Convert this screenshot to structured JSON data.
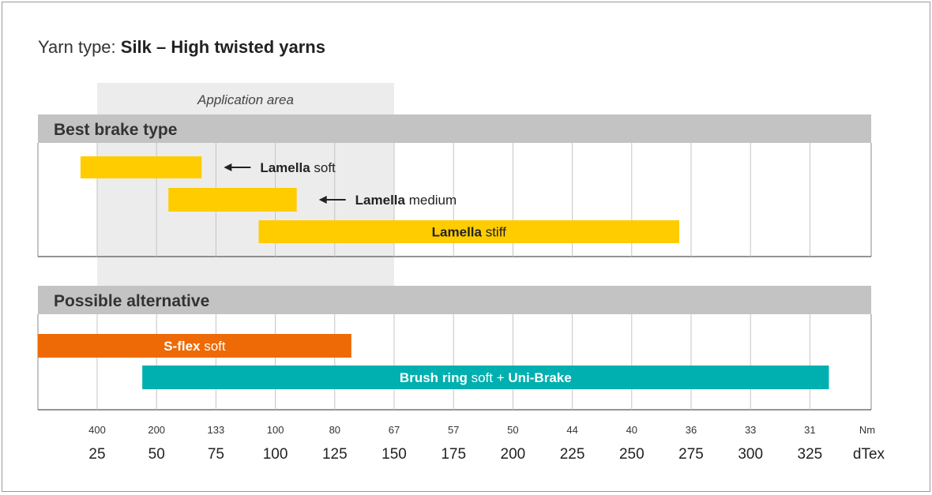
{
  "title": {
    "prefix": "Yarn type: ",
    "name": "Silk – High twisted yarns"
  },
  "application_area": {
    "label": "Application area",
    "from_dtex": 25,
    "to_dtex": 150
  },
  "chart_data": {
    "type": "range-bar",
    "title": "Yarn type: Silk – High twisted yarns",
    "dtex_ticks": [
      25,
      50,
      75,
      100,
      125,
      150,
      175,
      200,
      225,
      250,
      275,
      300,
      325
    ],
    "nm_ticks": [
      "400",
      "200",
      "133",
      "100",
      "80",
      "67",
      "57",
      "50",
      "44",
      "40",
      "36",
      "33",
      "31"
    ],
    "dtex_unit": "dTex",
    "nm_unit": "Nm",
    "sections": [
      {
        "heading": "Best brake type",
        "bars": [
          {
            "bold": "Lamella",
            "rest": " soft",
            "from": 18,
            "to": 69,
            "color": "#FFCC00",
            "label_pos": "outside",
            "arrow": true
          },
          {
            "bold": "Lamella",
            "rest": " medium",
            "from": 55,
            "to": 109,
            "color": "#FFCC00",
            "label_pos": "outside",
            "arrow": true
          },
          {
            "bold": "Lamella",
            "rest": " stiff",
            "from": 93,
            "to": 270,
            "color": "#FFCC00",
            "label_pos": "inside",
            "text_color": "#222222"
          }
        ]
      },
      {
        "heading": "Possible alternative",
        "bars": [
          {
            "bold": "S-flex",
            "rest": " soft",
            "from": 0,
            "to": 132,
            "color": "#EE6A06",
            "label_pos": "inside",
            "text_color": "#ffffff"
          },
          {
            "bold": "Brush ring",
            "rest": " soft + ",
            "bold2": "Uni-Brake",
            "from": 44,
            "to": 333,
            "color": "#00AFAF",
            "label_pos": "inside",
            "text_color": "#ffffff"
          }
        ]
      }
    ]
  }
}
